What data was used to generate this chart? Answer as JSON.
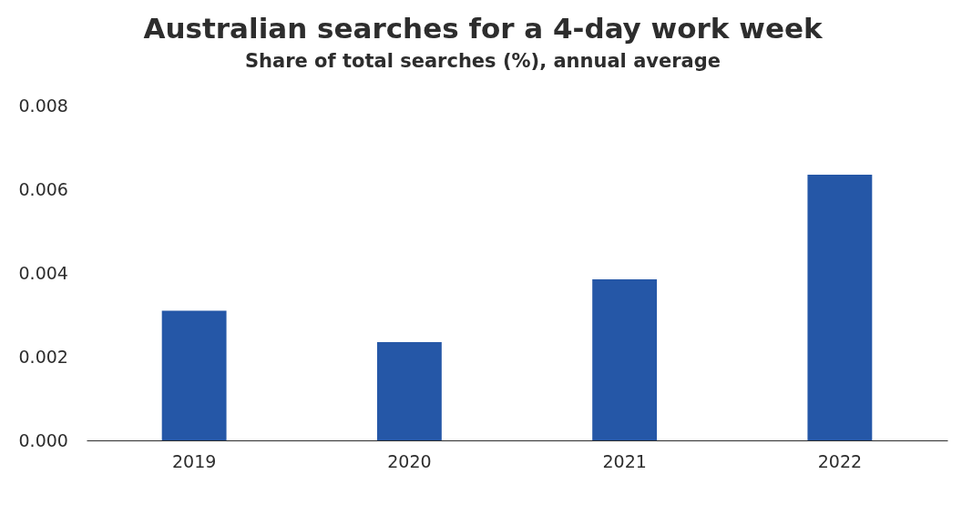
{
  "chart_data": {
    "type": "bar",
    "title": "Australian searches for a 4-day work week",
    "subtitle": "Share of total searches (%), annual average",
    "categories": [
      "2019",
      "2020",
      "2021",
      "2022"
    ],
    "values": [
      0.0031,
      0.00235,
      0.00385,
      0.00635
    ],
    "color": "#2557a7",
    "ylim": [
      0,
      0.008
    ],
    "yticks": [
      {
        "value": 0,
        "label": "0.000"
      },
      {
        "value": 0.002,
        "label": "0.002"
      },
      {
        "value": 0.004,
        "label": "0.004"
      },
      {
        "value": 0.006,
        "label": "0.006"
      },
      {
        "value": 0.008,
        "label": "0.008"
      }
    ],
    "grid": false
  }
}
